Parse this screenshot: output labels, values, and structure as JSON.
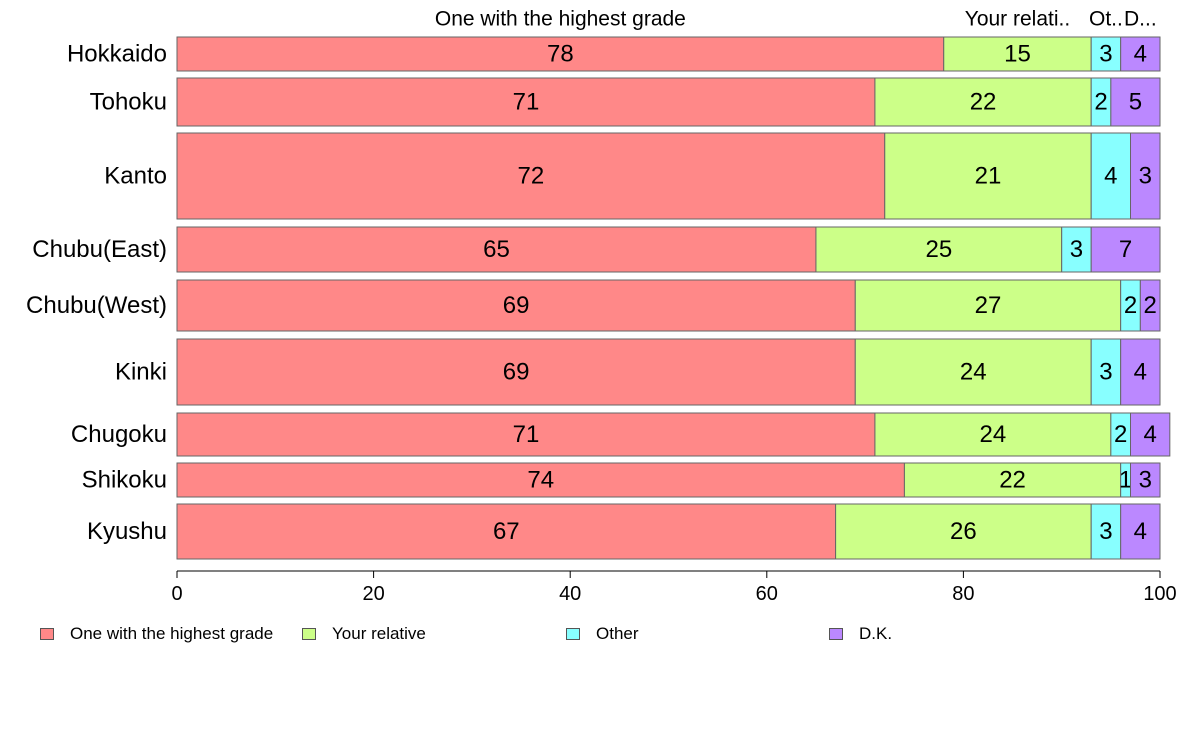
{
  "chart_data": {
    "type": "bar",
    "orientation": "horizontal",
    "stacked": true,
    "categories": [
      "Hokkaido",
      "Tohoku",
      "Kanto",
      "Chubu(East)",
      "Chubu(West)",
      "Kinki",
      "Chugoku",
      "Shikoku",
      "Kyushu"
    ],
    "series": [
      {
        "name": "One with the highest grade",
        "color": "#ff8888",
        "values": [
          78,
          71,
          72,
          65,
          69,
          69,
          71,
          74,
          67
        ]
      },
      {
        "name": "Your relative",
        "color": "#ccff88",
        "values": [
          15,
          22,
          21,
          25,
          27,
          24,
          24,
          22,
          26
        ]
      },
      {
        "name": "Other",
        "color": "#88ffff",
        "values": [
          3,
          2,
          4,
          3,
          2,
          3,
          2,
          1,
          3
        ]
      },
      {
        "name": "D.K.",
        "color": "#bb88ff",
        "values": [
          4,
          5,
          3,
          7,
          2,
          4,
          4,
          3,
          4
        ]
      }
    ],
    "top_labels": [
      "One with the highest grade",
      "Your relati..",
      "Ot..",
      "D..."
    ],
    "xlim": [
      0,
      100
    ],
    "xticks": [
      "0",
      "20",
      "40",
      "60",
      "80",
      "100"
    ],
    "legend_position": "bottom",
    "grid": false
  }
}
